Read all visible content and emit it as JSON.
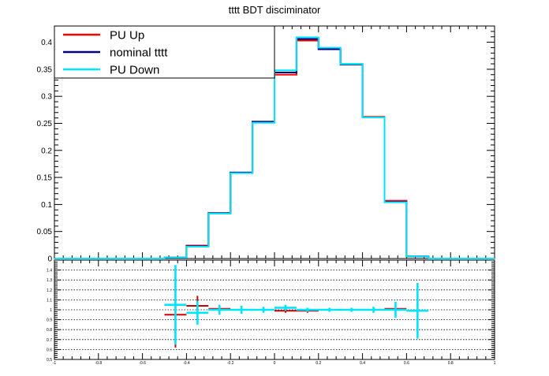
{
  "chart_data": [
    {
      "type": "line",
      "title": "tttt BDT disciminator",
      "xlabel": "",
      "ylabel": "",
      "xlim": [
        -1,
        1
      ],
      "ylim": [
        0,
        0.43
      ],
      "grid": false,
      "legend_position": "top-left",
      "yticks": [
        0,
        0.05,
        0.1,
        0.15,
        0.2,
        0.25,
        0.3,
        0.35,
        0.4
      ],
      "ytick_labels": [
        "0",
        "0.05",
        "0.1",
        "0.15",
        "0.2",
        "0.25",
        "0.3",
        "0.35",
        "0.4"
      ],
      "bin_edges": [
        -1,
        -0.9,
        -0.8,
        -0.7,
        -0.6,
        -0.5,
        -0.4,
        -0.3,
        -0.2,
        -0.1,
        0,
        0.1,
        0.2,
        0.3,
        0.4,
        0.5,
        0.6,
        0.7,
        0.8,
        0.9,
        1
      ],
      "series": [
        {
          "name": "PU Up",
          "color": "#ff0000",
          "values": [
            0,
            0,
            0,
            0,
            0,
            0.002,
            0.024,
            0.084,
            0.159,
            0.253,
            0.34,
            0.403,
            0.387,
            0.36,
            0.262,
            0.107,
            0.004,
            0,
            0,
            0
          ]
        },
        {
          "name": "nominal tttt",
          "color": "#00007f",
          "values": [
            0,
            0,
            0,
            0,
            0,
            0.002,
            0.023,
            0.084,
            0.159,
            0.253,
            0.344,
            0.406,
            0.387,
            0.359,
            0.261,
            0.105,
            0.004,
            0,
            0,
            0
          ]
        },
        {
          "name": "PU Down",
          "color": "#00e5ff",
          "values": [
            0,
            0,
            0,
            0,
            0,
            0.002,
            0.022,
            0.083,
            0.158,
            0.251,
            0.348,
            0.409,
            0.39,
            0.36,
            0.261,
            0.104,
            0.004,
            0,
            0,
            0
          ]
        }
      ]
    },
    {
      "type": "scatter",
      "title": "",
      "xlabel": "",
      "ylabel": "",
      "xlim": [
        -1,
        1
      ],
      "ylim": [
        0.5,
        1.5
      ],
      "grid": true,
      "yticks": [
        0.5,
        0.6,
        0.7,
        0.8,
        0.9,
        1,
        1.1,
        1.2,
        1.3,
        1.4
      ],
      "ytick_labels": [
        "0.5",
        "0.6",
        "0.7",
        "0.8",
        "0.9",
        "1",
        "1.1",
        "1.2",
        "1.3",
        "1.4"
      ],
      "xticks": [
        -1,
        -0.8,
        -0.6,
        -0.4,
        -0.2,
        0,
        0.2,
        0.4,
        0.6,
        0.8,
        1
      ],
      "xtick_labels": [
        "-1",
        "-0.8",
        "-0.6",
        "-0.4",
        "-0.2",
        "0",
        "0.2",
        "0.4",
        "0.6",
        "0.8",
        "1"
      ],
      "series": [
        {
          "name": "PU Up",
          "color": "#cc0000",
          "points": [
            {
              "x": -0.45,
              "y": 0.95,
              "xerr": 0.05,
              "yerr": 0.33
            },
            {
              "x": -0.35,
              "y": 1.04,
              "xerr": 0.05,
              "yerr": 0.1
            },
            {
              "x": -0.25,
              "y": 1.01,
              "xerr": 0.05,
              "yerr": 0.02
            },
            {
              "x": -0.15,
              "y": 1.0,
              "xerr": 0.05,
              "yerr": 0.02
            },
            {
              "x": -0.05,
              "y": 1.0,
              "xerr": 0.05,
              "yerr": 0.02
            },
            {
              "x": 0.05,
              "y": 0.99,
              "xerr": 0.05,
              "yerr": 0.02
            },
            {
              "x": 0.15,
              "y": 0.99,
              "xerr": 0.05,
              "yerr": 0.02
            },
            {
              "x": 0.25,
              "y": 1.0,
              "xerr": 0.05,
              "yerr": 0.02
            },
            {
              "x": 0.35,
              "y": 1.0,
              "xerr": 0.05,
              "yerr": 0.02
            },
            {
              "x": 0.45,
              "y": 1.0,
              "xerr": 0.05,
              "yerr": 0.02
            },
            {
              "x": 0.55,
              "y": 1.01,
              "xerr": 0.05,
              "yerr": 0.04
            }
          ]
        },
        {
          "name": "PU Down",
          "color": "#00e5ff",
          "points": [
            {
              "x": -0.45,
              "y": 1.05,
              "xerr": 0.05,
              "yerr": 0.4
            },
            {
              "x": -0.35,
              "y": 0.97,
              "xerr": 0.05,
              "yerr": 0.12
            },
            {
              "x": -0.25,
              "y": 1.0,
              "xerr": 0.05,
              "yerr": 0.05
            },
            {
              "x": -0.15,
              "y": 1.0,
              "xerr": 0.05,
              "yerr": 0.04
            },
            {
              "x": -0.05,
              "y": 1.0,
              "xerr": 0.05,
              "yerr": 0.03
            },
            {
              "x": 0.05,
              "y": 1.02,
              "xerr": 0.05,
              "yerr": 0.03
            },
            {
              "x": 0.15,
              "y": 1.0,
              "xerr": 0.05,
              "yerr": 0.02
            },
            {
              "x": 0.25,
              "y": 1.0,
              "xerr": 0.05,
              "yerr": 0.02
            },
            {
              "x": 0.35,
              "y": 1.0,
              "xerr": 0.05,
              "yerr": 0.02
            },
            {
              "x": 0.45,
              "y": 1.0,
              "xerr": 0.05,
              "yerr": 0.03
            },
            {
              "x": 0.55,
              "y": 1.0,
              "xerr": 0.05,
              "yerr": 0.08
            },
            {
              "x": 0.65,
              "y": 0.99,
              "xerr": 0.05,
              "yerr": 0.28
            }
          ]
        }
      ]
    }
  ]
}
